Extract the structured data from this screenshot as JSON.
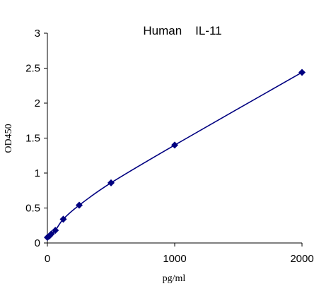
{
  "chart_data": {
    "type": "scatter",
    "title": "Human    IL-11",
    "xlabel": "pg/ml",
    "ylabel": "OD450",
    "xlim": [
      0,
      2000
    ],
    "ylim": [
      0,
      3
    ],
    "x_ticks": [
      0,
      1000,
      2000
    ],
    "x_tick_labels": [
      "0",
      "1000",
      "2000"
    ],
    "y_ticks": [
      0,
      0.5,
      1,
      1.5,
      2,
      2.5,
      3
    ],
    "y_tick_labels": [
      "0",
      "0.5",
      "1",
      "1.5",
      "2",
      "2.5",
      "3"
    ],
    "grid": false,
    "series": [
      {
        "marker": "diamond",
        "color": "#000080",
        "line": "smooth-fit",
        "points": [
          {
            "x": 0,
            "y": 0.08
          },
          {
            "x": 15.6,
            "y": 0.1
          },
          {
            "x": 31.25,
            "y": 0.13
          },
          {
            "x": 62.5,
            "y": 0.18
          },
          {
            "x": 125,
            "y": 0.34
          },
          {
            "x": 250,
            "y": 0.54
          },
          {
            "x": 500,
            "y": 0.86
          },
          {
            "x": 1000,
            "y": 1.4
          },
          {
            "x": 2000,
            "y": 2.44
          }
        ]
      }
    ]
  }
}
